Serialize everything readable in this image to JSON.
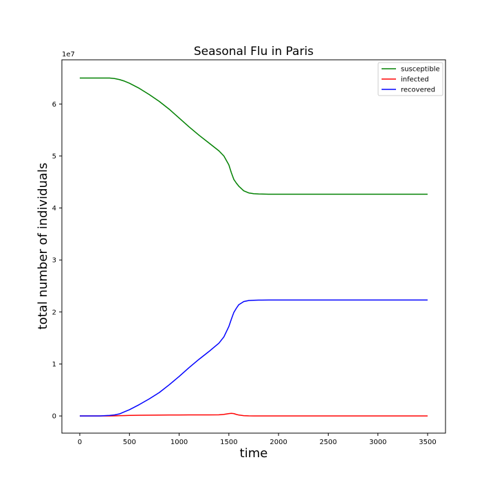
{
  "chart_data": {
    "type": "line",
    "title": "Seasonal Flu in Paris",
    "xlabel": "time",
    "ylabel": "total number of individuals",
    "y_offset_label": "1e7",
    "xlim": [
      -180,
      3680
    ],
    "ylim": [
      -0.33,
      6.85
    ],
    "y_scale": 10000000,
    "x_ticks": [
      0,
      500,
      1000,
      1500,
      2000,
      2500,
      3000,
      3500
    ],
    "x_tick_labels": [
      "0",
      "500",
      "1000",
      "1500",
      "2000",
      "2500",
      "3000",
      "3500"
    ],
    "y_ticks": [
      0,
      1,
      2,
      3,
      4,
      5,
      6
    ],
    "y_tick_labels": [
      "0",
      "1",
      "2",
      "3",
      "4",
      "5",
      "6"
    ],
    "legend_position": "top-right",
    "grid": false,
    "x": [
      0,
      100,
      200,
      300,
      350,
      400,
      450,
      500,
      600,
      700,
      800,
      900,
      1000,
      1100,
      1200,
      1300,
      1400,
      1450,
      1500,
      1525,
      1550,
      1575,
      1600,
      1650,
      1700,
      1750,
      1800,
      1900,
      2000,
      2500,
      3000,
      3500
    ],
    "series": [
      {
        "name": "susceptible",
        "color": "#008000",
        "values": [
          6.5,
          6.5,
          6.5,
          6.5,
          6.49,
          6.47,
          6.44,
          6.4,
          6.3,
          6.18,
          6.05,
          5.9,
          5.73,
          5.56,
          5.4,
          5.25,
          5.1,
          5.0,
          4.83,
          4.68,
          4.55,
          4.48,
          4.42,
          4.33,
          4.29,
          4.275,
          4.27,
          4.265,
          4.265,
          4.265,
          4.265,
          4.265
        ]
      },
      {
        "name": "infected",
        "color": "#ff0000",
        "values": [
          0,
          0,
          0,
          0.001,
          0.003,
          0.005,
          0.007,
          0.01,
          0.013,
          0.015,
          0.017,
          0.018,
          0.019,
          0.02,
          0.02,
          0.02,
          0.022,
          0.03,
          0.045,
          0.05,
          0.045,
          0.03,
          0.018,
          0.006,
          0.002,
          0.001,
          0,
          0,
          0,
          0,
          0,
          0
        ]
      },
      {
        "name": "recovered",
        "color": "#0000ff",
        "values": [
          0,
          0,
          0,
          0.01,
          0.02,
          0.04,
          0.08,
          0.12,
          0.22,
          0.33,
          0.45,
          0.6,
          0.76,
          0.93,
          1.09,
          1.24,
          1.4,
          1.52,
          1.72,
          1.86,
          1.99,
          2.07,
          2.14,
          2.2,
          2.22,
          2.225,
          2.228,
          2.23,
          2.23,
          2.23,
          2.23,
          2.23
        ]
      }
    ]
  }
}
